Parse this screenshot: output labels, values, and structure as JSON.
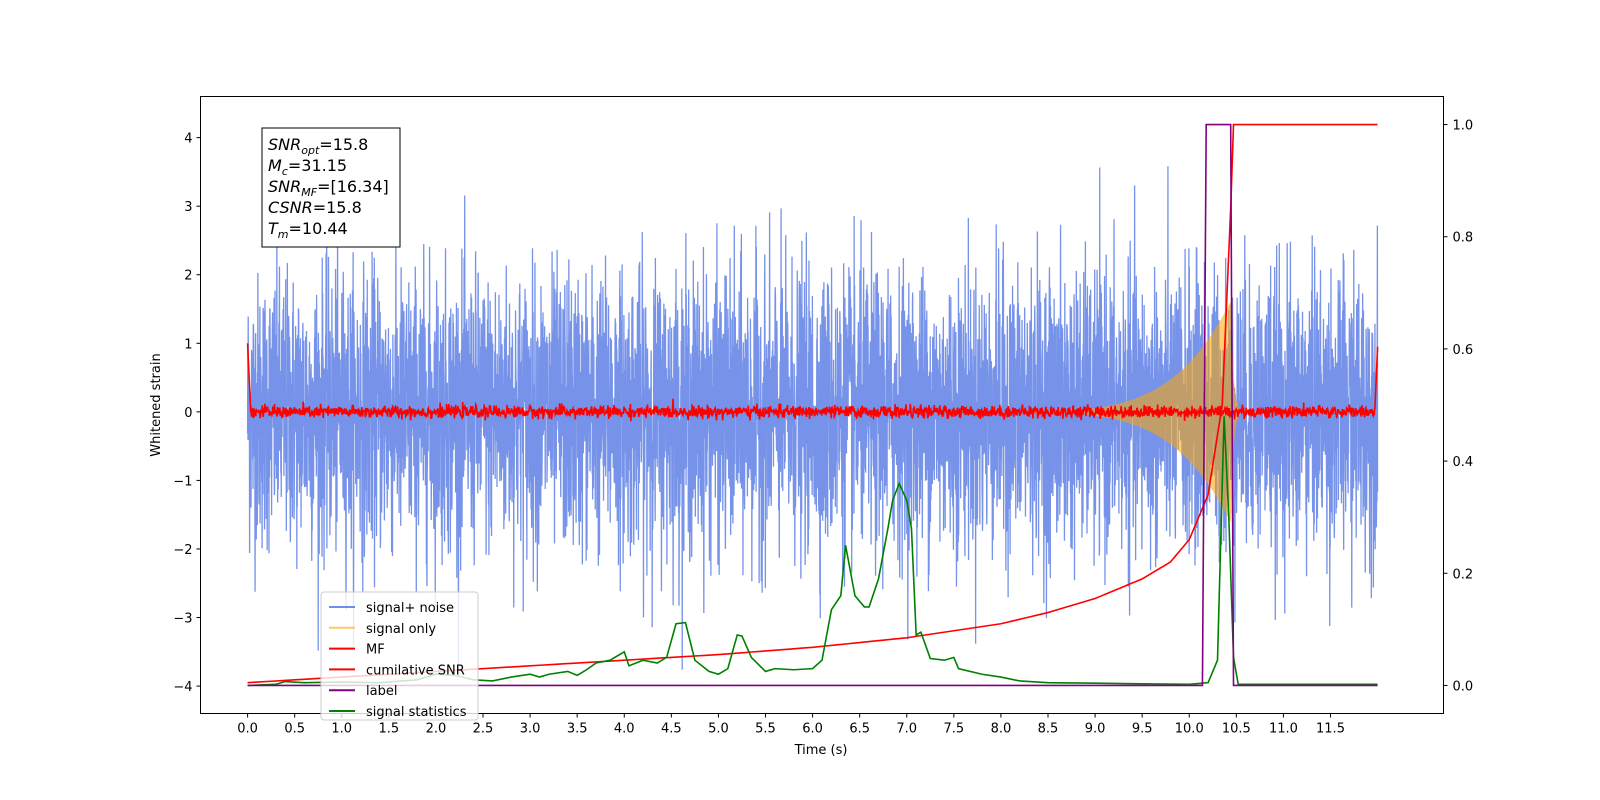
{
  "chart_data": {
    "type": "line",
    "xlabel": "Time (s)",
    "ylabel": "Whitened strain",
    "ylabel_right": "",
    "xlim": [
      -0.5,
      12.7
    ],
    "ylim": [
      -4.4,
      4.6
    ],
    "ylim_right": [
      -0.05,
      1.05
    ],
    "x_ticks": [
      "0.0",
      "0.5",
      "1.0",
      "1.5",
      "2.0",
      "2.5",
      "3.0",
      "3.5",
      "4.0",
      "4.5",
      "5.0",
      "5.5",
      "6.0",
      "6.5",
      "7.0",
      "7.5",
      "8.0",
      "8.5",
      "9.0",
      "9.5",
      "10.0",
      "10.5",
      "11.0",
      "11.5"
    ],
    "y_ticks": [
      "4",
      "3",
      "2",
      "1",
      "0",
      "−1",
      "−2",
      "−3",
      "−4"
    ],
    "y_ticks_right": [
      "1.0",
      "0.8",
      "0.6",
      "0.4",
      "0.2",
      "0.0"
    ],
    "grid": false,
    "legend_position": "lower-left",
    "info_box": {
      "lines": [
        {
          "sym": "SNR",
          "sub": "opt",
          "text": "=15.8"
        },
        {
          "sym": "M",
          "sub": "c",
          "text": "=31.15"
        },
        {
          "sym": "SNR",
          "sub": "MF",
          "text": "=[16.34]"
        },
        {
          "sym": "CSNR",
          "sub": "",
          "text": "=15.8"
        },
        {
          "sym": "T",
          "sub": "m",
          "text": "=10.44"
        }
      ]
    },
    "series": [
      {
        "name": "signal+ noise",
        "color": "#4169e1",
        "axis": "left",
        "description_values": {
          "x_range": [
            0.0,
            12.0
          ],
          "noise_sigma": 1.0,
          "peak_max": 4.15,
          "peak_min": -3.85
        }
      },
      {
        "name": "signal only",
        "color": "#ffa500",
        "axis": "left",
        "chirp": {
          "start": 7.5,
          "peak_time": 10.44,
          "peak_amplitude": 1.6
        }
      },
      {
        "name": "MF",
        "color": "#ff0000",
        "axis": "left",
        "level": 0.0,
        "edge_values": [
          1.0,
          0.95
        ]
      },
      {
        "name": "cumilative SNR",
        "color": "#ff0000",
        "axis": "right",
        "points": [
          [
            0.0,
            0.005
          ],
          [
            1.0,
            0.015
          ],
          [
            2.0,
            0.025
          ],
          [
            3.0,
            0.035
          ],
          [
            4.0,
            0.045
          ],
          [
            5.0,
            0.055
          ],
          [
            6.0,
            0.068
          ],
          [
            7.0,
            0.085
          ],
          [
            8.0,
            0.11
          ],
          [
            8.5,
            0.13
          ],
          [
            9.0,
            0.155
          ],
          [
            9.5,
            0.19
          ],
          [
            9.8,
            0.22
          ],
          [
            10.0,
            0.26
          ],
          [
            10.2,
            0.34
          ],
          [
            10.35,
            0.5
          ],
          [
            10.44,
            0.85
          ],
          [
            10.47,
            1.0
          ],
          [
            12.0,
            1.0
          ]
        ]
      },
      {
        "name": "label",
        "color": "#800080",
        "axis": "right",
        "points": [
          [
            0.0,
            0.0
          ],
          [
            10.14,
            0.0
          ],
          [
            10.18,
            1.0
          ],
          [
            10.44,
            1.0
          ],
          [
            10.47,
            0.0
          ],
          [
            12.0,
            0.0
          ]
        ]
      },
      {
        "name": "signal statistics",
        "color": "#008000",
        "axis": "right",
        "points": [
          [
            0.0,
            0.0
          ],
          [
            0.3,
            0.002
          ],
          [
            0.4,
            0.007
          ],
          [
            0.6,
            0.005
          ],
          [
            1.0,
            0.006
          ],
          [
            1.4,
            0.005
          ],
          [
            1.8,
            0.01
          ],
          [
            2.0,
            0.02
          ],
          [
            2.2,
            0.018
          ],
          [
            2.4,
            0.01
          ],
          [
            2.6,
            0.008
          ],
          [
            2.8,
            0.015
          ],
          [
            3.0,
            0.02
          ],
          [
            3.1,
            0.015
          ],
          [
            3.2,
            0.02
          ],
          [
            3.4,
            0.025
          ],
          [
            3.5,
            0.018
          ],
          [
            3.6,
            0.028
          ],
          [
            3.7,
            0.04
          ],
          [
            3.85,
            0.045
          ],
          [
            4.0,
            0.06
          ],
          [
            4.05,
            0.035
          ],
          [
            4.2,
            0.045
          ],
          [
            4.35,
            0.04
          ],
          [
            4.45,
            0.05
          ],
          [
            4.55,
            0.11
          ],
          [
            4.65,
            0.112
          ],
          [
            4.75,
            0.045
          ],
          [
            4.9,
            0.025
          ],
          [
            5.0,
            0.02
          ],
          [
            5.1,
            0.03
          ],
          [
            5.2,
            0.09
          ],
          [
            5.25,
            0.088
          ],
          [
            5.35,
            0.05
          ],
          [
            5.5,
            0.025
          ],
          [
            5.6,
            0.03
          ],
          [
            5.8,
            0.028
          ],
          [
            6.0,
            0.03
          ],
          [
            6.1,
            0.045
          ],
          [
            6.2,
            0.135
          ],
          [
            6.3,
            0.16
          ],
          [
            6.35,
            0.25
          ],
          [
            6.45,
            0.16
          ],
          [
            6.55,
            0.14
          ],
          [
            6.6,
            0.14
          ],
          [
            6.7,
            0.19
          ],
          [
            6.8,
            0.28
          ],
          [
            6.85,
            0.33
          ],
          [
            6.92,
            0.36
          ],
          [
            7.0,
            0.33
          ],
          [
            7.05,
            0.28
          ],
          [
            7.1,
            0.09
          ],
          [
            7.15,
            0.095
          ],
          [
            7.25,
            0.048
          ],
          [
            7.4,
            0.045
          ],
          [
            7.5,
            0.05
          ],
          [
            7.55,
            0.03
          ],
          [
            7.8,
            0.02
          ],
          [
            8.0,
            0.015
          ],
          [
            8.2,
            0.008
          ],
          [
            8.5,
            0.005
          ],
          [
            9.0,
            0.004
          ],
          [
            9.5,
            0.003
          ],
          [
            10.0,
            0.002
          ],
          [
            10.2,
            0.005
          ],
          [
            10.3,
            0.045
          ],
          [
            10.37,
            0.48
          ],
          [
            10.42,
            0.3
          ],
          [
            10.47,
            0.05
          ],
          [
            10.52,
            0.002
          ],
          [
            12.0,
            0.002
          ]
        ]
      }
    ]
  }
}
